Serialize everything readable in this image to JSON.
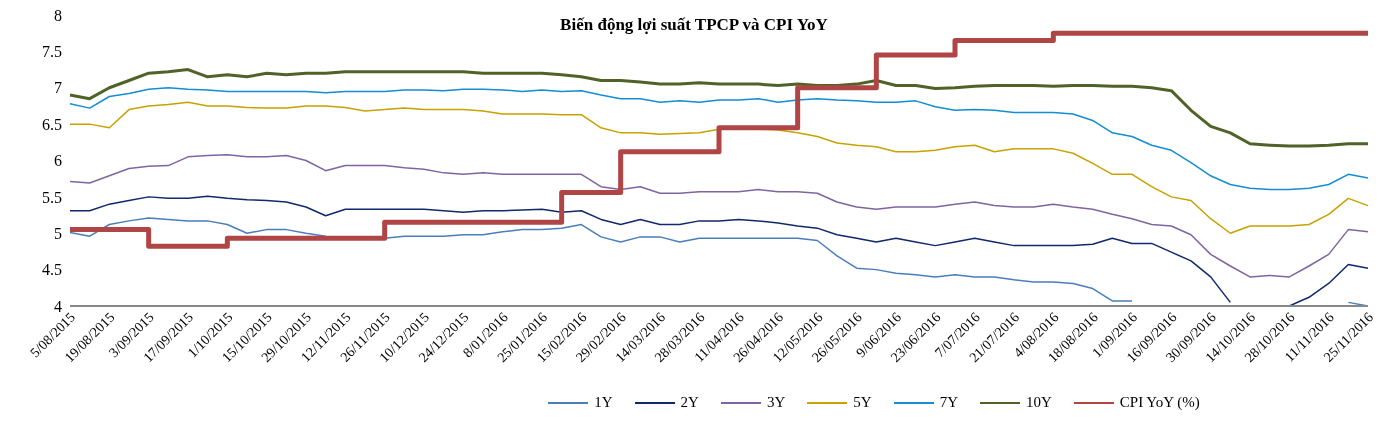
{
  "chart_data": {
    "type": "line",
    "title": "Biến động lợi suất TPCP và CPI YoY",
    "categories": [
      "5/08/2015",
      null,
      "19/08/2015",
      null,
      "3/09/2015",
      null,
      "17/09/2015",
      null,
      "1/10/2015",
      null,
      "15/10/2015",
      null,
      "29/10/2015",
      null,
      "12/11/2015",
      null,
      "26/11/2015",
      null,
      "10/12/2015",
      null,
      "24/12/2015",
      null,
      "8/01/2016",
      null,
      "25/01/2016",
      null,
      "15/02/2016",
      null,
      "29/02/2016",
      null,
      "14/03/2016",
      null,
      "28/03/2016",
      null,
      "11/04/2016",
      null,
      "26/04/2016",
      null,
      "12/05/2016",
      null,
      "26/05/2016",
      null,
      "9/06/2016",
      null,
      "23/06/2016",
      null,
      "7/07/2016",
      null,
      "21/07/2016",
      null,
      "4/08/2016",
      null,
      "18/08/2016",
      null,
      "1/09/2016",
      null,
      "16/09/2016",
      null,
      "30/09/2016",
      null,
      "14/10/2016",
      null,
      "28/10/2016",
      null,
      "11/11/2016",
      null,
      "25/11/2016"
    ],
    "ylim": [
      4,
      8
    ],
    "yticks": [
      4,
      4.5,
      5,
      5.5,
      6,
      6.5,
      7,
      7.5,
      8
    ],
    "grid": false,
    "legend": "bottom",
    "marker": "none",
    "series": [
      {
        "name": "1Y",
        "color": "#4a7ebb",
        "values": [
          5.01,
          4.96,
          5.12,
          5.17,
          5.21,
          5.19,
          5.17,
          5.17,
          5.12,
          5.0,
          5.05,
          5.05,
          5.0,
          4.96,
          null,
          null,
          4.93,
          4.96,
          4.96,
          4.96,
          4.98,
          4.98,
          5.02,
          5.05,
          5.05,
          5.07,
          5.12,
          4.95,
          4.88,
          4.95,
          4.95,
          4.88,
          4.93,
          4.93,
          4.93,
          4.93,
          4.93,
          4.93,
          4.9,
          4.69,
          4.52,
          4.5,
          4.45,
          4.43,
          4.4,
          4.43,
          4.4,
          4.4,
          4.36,
          4.33,
          4.33,
          4.31,
          4.24,
          4.07,
          4.07,
          null,
          null,
          null,
          null,
          null,
          null,
          null,
          null,
          null,
          null,
          4.05,
          4.0
        ]
      },
      {
        "name": "2Y",
        "color": "#10296a",
        "values": [
          5.31,
          5.31,
          5.4,
          5.45,
          5.5,
          5.48,
          5.48,
          5.51,
          5.48,
          5.46,
          5.45,
          5.43,
          5.36,
          5.24,
          5.33,
          5.33,
          5.33,
          5.33,
          5.33,
          5.31,
          5.29,
          5.31,
          5.31,
          5.32,
          5.33,
          5.29,
          5.31,
          5.19,
          5.12,
          5.19,
          5.12,
          5.12,
          5.17,
          5.17,
          5.19,
          5.17,
          5.14,
          5.1,
          5.07,
          4.98,
          4.93,
          4.88,
          4.93,
          4.88,
          4.83,
          4.88,
          4.93,
          4.88,
          4.83,
          4.83,
          4.83,
          4.83,
          4.85,
          4.93,
          4.86,
          4.86,
          4.74,
          4.62,
          4.4,
          4.05,
          null,
          null,
          4.0,
          4.12,
          4.31,
          4.57,
          4.52
        ]
      },
      {
        "name": "3Y",
        "color": "#8064a2",
        "values": [
          5.71,
          5.69,
          5.79,
          5.89,
          5.92,
          5.93,
          6.05,
          6.07,
          6.08,
          6.05,
          6.05,
          6.07,
          6.0,
          5.86,
          5.93,
          5.93,
          5.93,
          5.9,
          5.88,
          5.83,
          5.81,
          5.83,
          5.81,
          5.81,
          5.81,
          5.81,
          5.81,
          5.64,
          5.6,
          5.64,
          5.55,
          5.55,
          5.57,
          5.57,
          5.57,
          5.6,
          5.57,
          5.57,
          5.55,
          5.43,
          5.36,
          5.33,
          5.36,
          5.36,
          5.36,
          5.4,
          5.43,
          5.38,
          5.36,
          5.36,
          5.4,
          5.36,
          5.33,
          5.26,
          5.2,
          5.12,
          5.1,
          4.98,
          4.71,
          4.55,
          4.4,
          4.42,
          4.4,
          4.55,
          4.71,
          5.05,
          5.02
        ]
      },
      {
        "name": "5Y",
        "color": "#c9a100",
        "values": [
          6.5,
          6.5,
          6.45,
          6.7,
          6.75,
          6.77,
          6.8,
          6.75,
          6.75,
          6.73,
          6.72,
          6.72,
          6.75,
          6.75,
          6.73,
          6.68,
          6.7,
          6.72,
          6.7,
          6.7,
          6.7,
          6.68,
          6.64,
          6.64,
          6.64,
          6.63,
          6.63,
          6.45,
          6.38,
          6.38,
          6.36,
          6.37,
          6.38,
          6.43,
          6.43,
          6.43,
          6.42,
          6.38,
          6.33,
          6.24,
          6.21,
          6.19,
          6.12,
          6.12,
          6.14,
          6.19,
          6.21,
          6.12,
          6.16,
          6.16,
          6.16,
          6.1,
          5.96,
          5.81,
          5.81,
          5.64,
          5.5,
          5.45,
          5.2,
          5.0,
          5.1,
          5.1,
          5.1,
          5.12,
          5.26,
          5.48,
          5.38
        ]
      },
      {
        "name": "7Y",
        "color": "#138dd4",
        "values": [
          6.78,
          6.72,
          6.88,
          6.92,
          6.98,
          7.0,
          6.98,
          6.97,
          6.95,
          6.95,
          6.95,
          6.95,
          6.95,
          6.93,
          6.95,
          6.95,
          6.95,
          6.97,
          6.97,
          6.96,
          6.98,
          6.98,
          6.97,
          6.95,
          6.97,
          6.95,
          6.96,
          6.9,
          6.85,
          6.85,
          6.8,
          6.82,
          6.8,
          6.83,
          6.83,
          6.85,
          6.8,
          6.83,
          6.85,
          6.83,
          6.82,
          6.8,
          6.8,
          6.82,
          6.74,
          6.69,
          6.7,
          6.69,
          6.66,
          6.66,
          6.66,
          6.64,
          6.55,
          6.38,
          6.33,
          6.21,
          6.14,
          5.97,
          5.79,
          5.67,
          5.62,
          5.6,
          5.6,
          5.62,
          5.67,
          5.81,
          5.76
        ]
      },
      {
        "name": "10Y",
        "color": "#4f6228",
        "values": [
          6.9,
          6.85,
          7.0,
          7.1,
          7.2,
          7.22,
          7.25,
          7.15,
          7.18,
          7.15,
          7.2,
          7.18,
          7.2,
          7.2,
          7.22,
          7.22,
          7.22,
          7.22,
          7.22,
          7.22,
          7.22,
          7.2,
          7.2,
          7.2,
          7.2,
          7.18,
          7.15,
          7.1,
          7.1,
          7.08,
          7.05,
          7.05,
          7.07,
          7.05,
          7.05,
          7.05,
          7.03,
          7.05,
          7.03,
          7.03,
          7.05,
          7.1,
          7.03,
          7.03,
          6.99,
          7.0,
          7.02,
          7.03,
          7.03,
          7.03,
          7.02,
          7.03,
          7.03,
          7.02,
          7.02,
          7.0,
          6.96,
          6.69,
          6.47,
          6.38,
          6.23,
          6.21,
          6.2,
          6.2,
          6.21,
          6.23,
          6.23
        ]
      },
      {
        "name": "CPI YoY (%)",
        "type": "step",
        "color": "#b04545",
        "values": [
          5.05,
          5.05,
          5.05,
          5.05,
          4.82,
          4.82,
          4.82,
          4.82,
          4.93,
          4.93,
          4.93,
          4.93,
          4.93,
          4.93,
          4.93,
          4.93,
          5.15,
          5.15,
          5.15,
          5.15,
          5.15,
          5.15,
          5.15,
          5.15,
          5.15,
          5.56,
          5.56,
          5.56,
          6.12,
          6.12,
          6.12,
          6.12,
          6.12,
          6.45,
          6.45,
          6.45,
          6.45,
          7.0,
          7.0,
          7.0,
          7.0,
          7.45,
          7.45,
          7.45,
          7.45,
          7.65,
          7.65,
          7.65,
          7.65,
          7.65,
          7.75,
          7.75,
          7.75,
          7.75,
          7.75,
          7.75,
          7.75,
          7.75,
          7.75,
          7.75,
          7.75,
          7.75,
          7.75,
          7.75,
          7.75,
          7.75,
          7.75
        ]
      }
    ]
  }
}
